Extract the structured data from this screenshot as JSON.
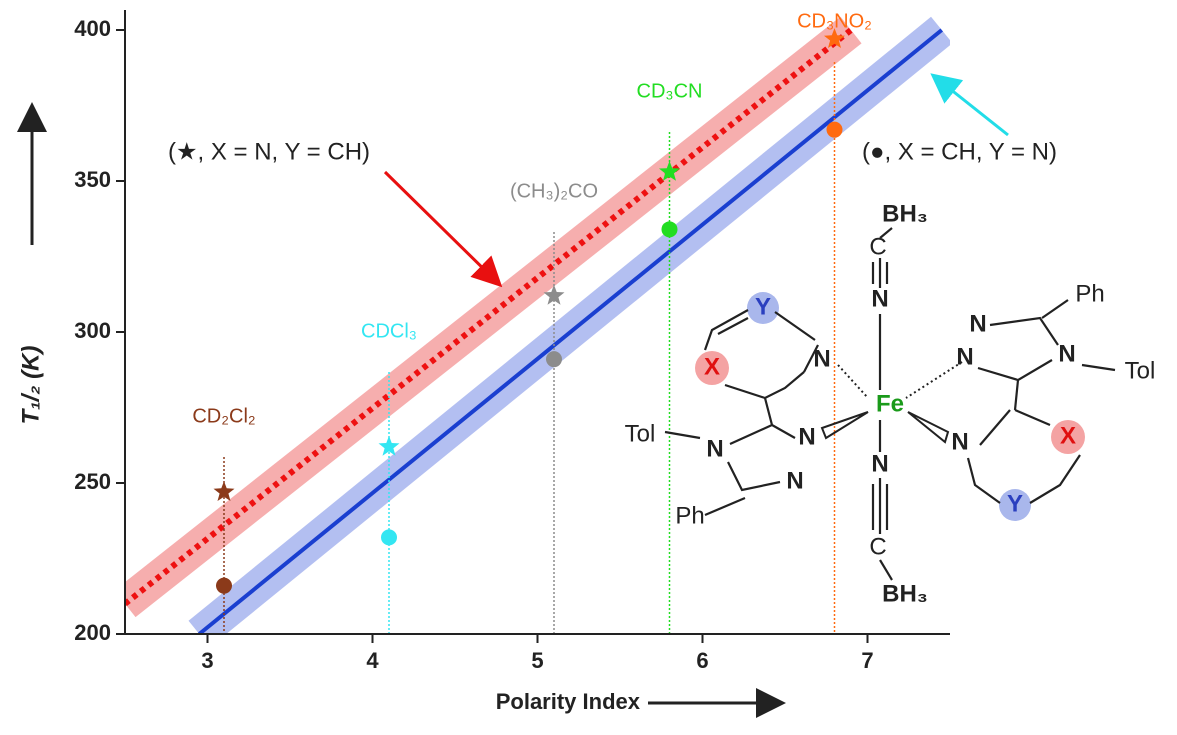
{
  "chart_data": {
    "type": "scatter",
    "xlabel": "Polarity Index",
    "ylabel": "T₁/₂ (K)",
    "xlim": [
      2.5,
      7.5
    ],
    "ylim": [
      200,
      400
    ],
    "xticks": [
      3,
      4,
      5,
      6,
      7
    ],
    "yticks": [
      200,
      250,
      300,
      350,
      400
    ],
    "x": [
      3.1,
      4.1,
      5.1,
      5.8,
      6.8
    ],
    "point_labels": [
      "CD₂Cl₂",
      "CDCl₃",
      "(CH₃)₂CO",
      "CD₃CN",
      "CD₃NO₂"
    ],
    "point_colors": [
      "#8b3a1a",
      "#33e6f2",
      "#8c8c8c",
      "#22dd22",
      "#ff6a10"
    ],
    "series": [
      {
        "marker": "star",
        "values": [
          247,
          262,
          312,
          353,
          397
        ]
      },
      {
        "marker": "circle",
        "values": [
          216,
          232,
          291,
          334,
          367
        ]
      }
    ],
    "fit_lines": [
      {
        "x": [
          2.5,
          6.9
        ],
        "values": [
          210,
          400
        ],
        "color": "#ee1111",
        "band_color": "#f5a0a0",
        "dashed": true
      },
      {
        "x": [
          2.95,
          7.45
        ],
        "values": [
          200,
          400
        ],
        "color": "#1a3fd0",
        "band_color": "#a6b4ee",
        "dashed": false
      }
    ],
    "annotations": [
      "(★, X = N, Y = CH)",
      "(●, X = CH, Y = N)"
    ]
  },
  "structure": {
    "atoms": [
      "BH₃",
      "C",
      "N",
      "Fe",
      "N",
      "C",
      "BH₃",
      "Y",
      "X",
      "N",
      "N",
      "N",
      "N",
      "Tol",
      "Ph",
      "Ph",
      "N",
      "N",
      "Tol",
      "N",
      "N",
      "X",
      "Y"
    ]
  }
}
